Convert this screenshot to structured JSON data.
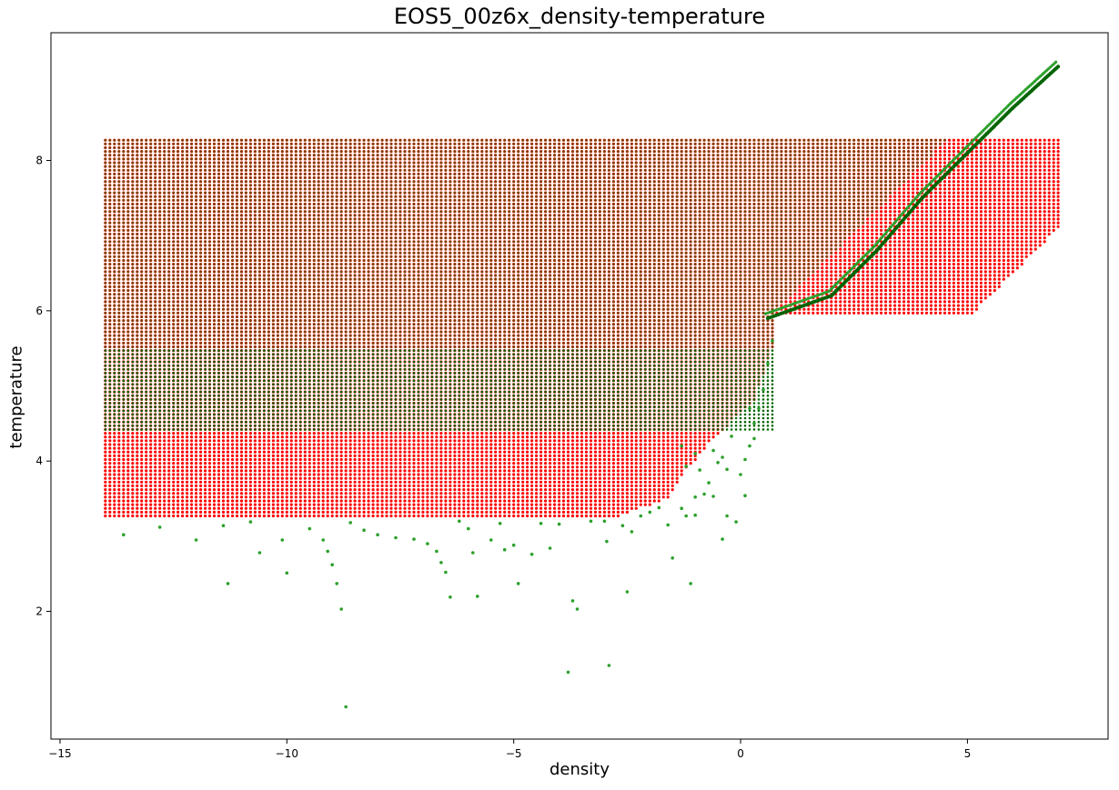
{
  "chart_data": {
    "type": "scatter",
    "title": "EOS5_00z6x_density-temperature",
    "xlabel": "density",
    "ylabel": "temperature",
    "xlim": [
      -15.2,
      8.1
    ],
    "ylim": [
      0.3,
      9.7
    ],
    "xticks": [
      -15,
      -10,
      -5,
      0,
      5
    ],
    "yticks": [
      2,
      4,
      6,
      8
    ],
    "grid": false,
    "legend": "none",
    "colors": {
      "red_series": "#ff0000",
      "green_series": "#2ca02c",
      "green_dense": "#006400",
      "overlap": "#6b4a00"
    },
    "series": [
      {
        "color": "#ff0000",
        "regions": [
          {
            "x_range": [
              -14,
              0.7
            ],
            "y_range": [
              3.27,
              8.3
            ],
            "lower_edge": [
              [
                -14,
                3.27
              ],
              [
                -2.7,
                3.27
              ],
              [
                -1.6,
                3.5
              ],
              [
                -1.3,
                3.8
              ],
              [
                -0.6,
                4.3
              ],
              [
                0.3,
                4.8
              ],
              [
                0.7,
                5.5
              ]
            ]
          },
          {
            "x_range": [
              0.7,
              7.0
            ],
            "y_range": [
              5.95,
              8.3
            ],
            "lower_edge": [
              [
                0.7,
                5.95
              ],
              [
                5.1,
                5.95
              ],
              [
                7.0,
                7.1
              ]
            ]
          }
        ]
      },
      {
        "color": "#2ca02c",
        "grid_region": {
          "x_range": [
            -14,
            0.7
          ],
          "y_range": [
            4.4,
            8.3
          ]
        },
        "diagonal": [
          [
            0.6,
            5.9
          ],
          [
            2.0,
            6.2
          ],
          [
            3.0,
            6.8
          ],
          [
            4.0,
            7.5
          ],
          [
            5.0,
            8.1
          ],
          [
            6.0,
            8.7
          ],
          [
            7.0,
            9.25
          ]
        ],
        "points": [
          [
            -13.6,
            3.02
          ],
          [
            -12.8,
            3.12
          ],
          [
            -12.0,
            2.95
          ],
          [
            -11.4,
            3.14
          ],
          [
            -11.3,
            2.37
          ],
          [
            -10.8,
            3.19
          ],
          [
            -10.6,
            2.78
          ],
          [
            -10.1,
            2.95
          ],
          [
            -10.0,
            2.51
          ],
          [
            -9.5,
            3.1
          ],
          [
            -9.2,
            2.95
          ],
          [
            -9.1,
            2.8
          ],
          [
            -9.0,
            2.62
          ],
          [
            -8.9,
            2.37
          ],
          [
            -8.8,
            2.03
          ],
          [
            -8.7,
            0.73
          ],
          [
            -8.6,
            3.18
          ],
          [
            -8.3,
            3.08
          ],
          [
            -8.0,
            3.02
          ],
          [
            -7.6,
            2.98
          ],
          [
            -7.2,
            2.96
          ],
          [
            -6.9,
            2.9
          ],
          [
            -6.7,
            2.8
          ],
          [
            -6.6,
            2.65
          ],
          [
            -6.5,
            2.52
          ],
          [
            -6.4,
            2.19
          ],
          [
            -6.2,
            3.2
          ],
          [
            -6.0,
            3.1
          ],
          [
            -5.9,
            2.78
          ],
          [
            -5.8,
            2.2
          ],
          [
            -5.5,
            2.95
          ],
          [
            -5.3,
            3.17
          ],
          [
            -5.2,
            2.82
          ],
          [
            -5.0,
            2.88
          ],
          [
            -4.9,
            2.37
          ],
          [
            -4.6,
            2.76
          ],
          [
            -4.4,
            3.17
          ],
          [
            -4.2,
            2.84
          ],
          [
            -4.0,
            3.16
          ],
          [
            -3.8,
            1.19
          ],
          [
            -3.7,
            2.14
          ],
          [
            -3.6,
            2.03
          ],
          [
            -3.3,
            3.2
          ],
          [
            -3.0,
            3.2
          ],
          [
            -2.95,
            2.93
          ],
          [
            -2.9,
            1.28
          ],
          [
            -2.6,
            3.14
          ],
          [
            -2.5,
            2.26
          ],
          [
            -2.4,
            3.06
          ],
          [
            -2.2,
            3.27
          ],
          [
            -2.0,
            3.32
          ],
          [
            -1.8,
            3.38
          ],
          [
            -1.6,
            3.15
          ],
          [
            -1.5,
            2.71
          ],
          [
            -1.2,
            3.27
          ],
          [
            -1.1,
            2.37
          ],
          [
            -1.0,
            3.28
          ],
          [
            -0.8,
            3.56
          ],
          [
            -0.7,
            3.71
          ],
          [
            -0.4,
            2.96
          ],
          [
            -0.3,
            3.27
          ],
          [
            -0.1,
            3.19
          ],
          [
            0.1,
            3.54
          ],
          [
            0.0,
            3.82
          ],
          [
            -0.3,
            3.89
          ],
          [
            -0.5,
            3.98
          ],
          [
            -1.0,
            4.1
          ],
          [
            -1.3,
            4.2
          ],
          [
            -1.2,
            3.93
          ],
          [
            -0.9,
            3.88
          ],
          [
            0.2,
            4.2
          ],
          [
            0.3,
            4.5
          ],
          [
            0.5,
            4.95
          ],
          [
            0.6,
            5.3
          ],
          [
            0.7,
            5.6
          ],
          [
            -0.2,
            4.33
          ],
          [
            -0.6,
            4.14
          ],
          [
            -0.4,
            4.05
          ],
          [
            0.1,
            4.02
          ],
          [
            -1.0,
            3.52
          ],
          [
            -1.3,
            3.37
          ],
          [
            -0.6,
            3.53
          ],
          [
            0.3,
            4.3
          ],
          [
            0.4,
            4.7
          ],
          [
            0.2,
            4.7
          ]
        ]
      }
    ]
  }
}
